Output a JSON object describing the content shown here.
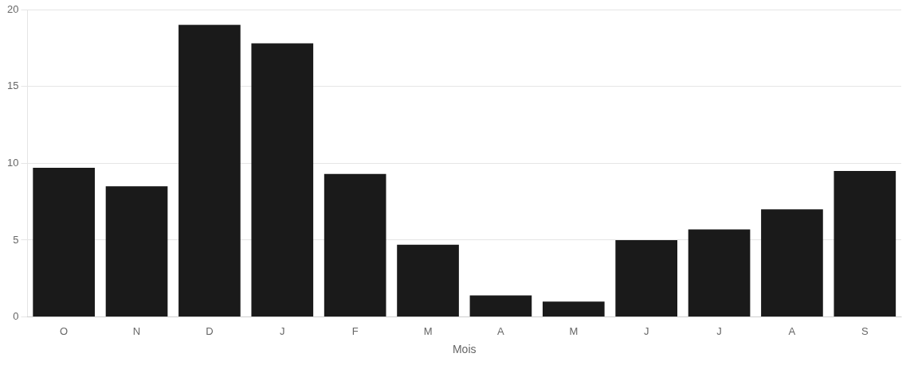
{
  "chart_data": {
    "type": "bar",
    "xlabel": "Mois",
    "categories": [
      "O",
      "N",
      "D",
      "J",
      "F",
      "M",
      "A",
      "M",
      "J",
      "J",
      "A",
      "S"
    ],
    "values": [
      9.7,
      8.5,
      19.0,
      17.8,
      9.3,
      4.7,
      1.4,
      1.0,
      5.0,
      5.7,
      7.0,
      9.5
    ],
    "color": "#1a1a1a",
    "ylim": [
      0,
      20
    ],
    "yticks": [
      0,
      5,
      10,
      15,
      20
    ],
    "grid": true
  }
}
